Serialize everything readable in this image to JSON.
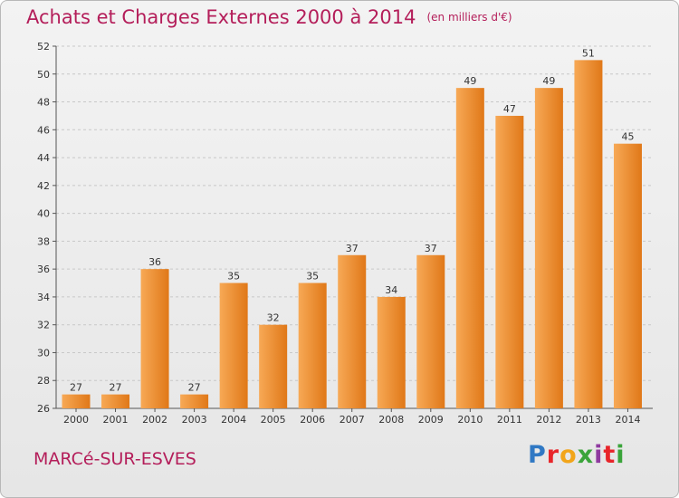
{
  "header": {
    "title": "Achats et Charges Externes 2000 à 2014",
    "subtitle": "(en milliers d'€)"
  },
  "footer": {
    "commune": "MARCé-SUR-ESVES",
    "logo_text": "Proxiti",
    "logo_colors": [
      "#2f78c4",
      "#e8252a",
      "#f2a51a",
      "#3aa43a",
      "#8f3aa0",
      "#e8252a",
      "#3aa43a"
    ]
  },
  "colors": {
    "bar_light": "#f7a956",
    "bar_dark": "#e07818",
    "title": "#b41e5a",
    "grid": "#c8c8c8"
  },
  "chart_data": {
    "type": "bar",
    "title": "Achats et Charges Externes 2000 à 2014",
    "subtitle": "(en milliers d'€)",
    "categories": [
      "2000",
      "2001",
      "2002",
      "2003",
      "2004",
      "2005",
      "2006",
      "2007",
      "2008",
      "2009",
      "2010",
      "2011",
      "2012",
      "2013",
      "2014"
    ],
    "values": [
      27,
      27,
      36,
      27,
      35,
      32,
      35,
      37,
      34,
      37,
      49,
      47,
      49,
      51,
      45
    ],
    "ylim": [
      26,
      52
    ],
    "yticks": [
      26,
      28,
      30,
      32,
      34,
      36,
      38,
      40,
      42,
      44,
      46,
      48,
      50,
      52
    ],
    "grid": true
  }
}
